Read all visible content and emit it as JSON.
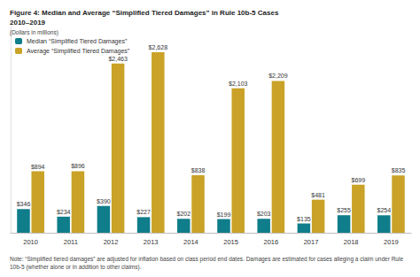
{
  "chart_data": {
    "type": "bar",
    "title": "Figure 4: Median and Average “Simplified Tiered Damages” in Rule 10b-5 Cases\n2010–2019",
    "subtitle": "(Dollars in millions)",
    "note": "Note: “Simplified tiered damages” are adjusted for inflation based on class period end dates. Damages are estimated for cases alleging a claim under Rule 10b-5 (whether alone or in addition to other claims).",
    "categories": [
      "2010",
      "2011",
      "2012",
      "2013",
      "2014",
      "2015",
      "2016",
      "2017",
      "2018",
      "2019"
    ],
    "series": [
      {
        "name": "Median “Simplified Tiered Damages”",
        "color": "#0f7d8a",
        "values": [
          346,
          234,
          390,
          227,
          202,
          199,
          203,
          135,
          255,
          254
        ],
        "value_labels": [
          "$346",
          "$234",
          "$390",
          "$227",
          "$202",
          "$199",
          "$203",
          "$135",
          "$255",
          "$254"
        ]
      },
      {
        "name": "Average “Simplified Tiered Damages”",
        "color": "#c9a227",
        "values": [
          894,
          896,
          2463,
          2628,
          838,
          2103,
          2209,
          481,
          699,
          835
        ],
        "value_labels": [
          "$894",
          "$896",
          "$2,463",
          "$2,628",
          "$838",
          "$2,103",
          "$2,209",
          "$481",
          "$699",
          "$835"
        ]
      }
    ],
    "ylim": [
      0,
      3000
    ],
    "data_labels": true,
    "tick_labels": "x",
    "grid": false,
    "legend": "top-left"
  }
}
